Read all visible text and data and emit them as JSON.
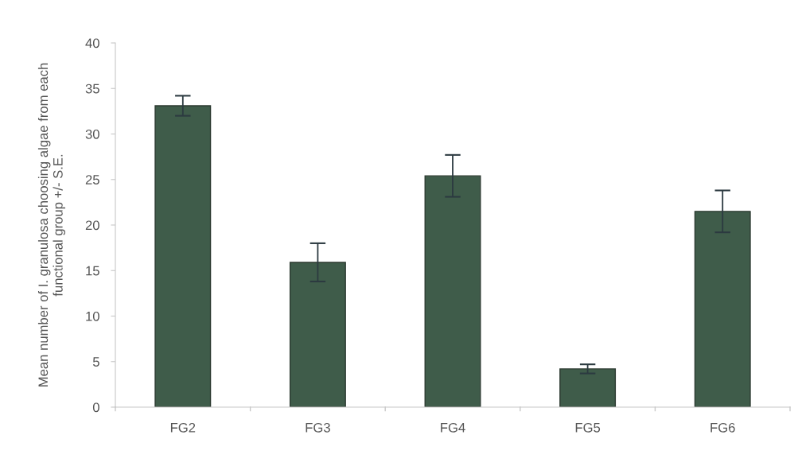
{
  "chart_data": {
    "type": "bar",
    "ylabel": "Mean number of I. granulosa choosing algae from each\nfunctional group +/- S.E.",
    "categories": [
      "FG2",
      "FG3",
      "FG4",
      "FG5",
      "FG6"
    ],
    "values": [
      33.1,
      15.9,
      25.4,
      4.2,
      21.5
    ],
    "errors": [
      1.1,
      2.1,
      2.3,
      0.5,
      2.3
    ],
    "color": "#3f5c4a",
    "ylim": [
      0,
      40
    ],
    "yticks": [
      0,
      5,
      10,
      15,
      20,
      25,
      30,
      35,
      40
    ],
    "grid": false,
    "legend": false
  }
}
